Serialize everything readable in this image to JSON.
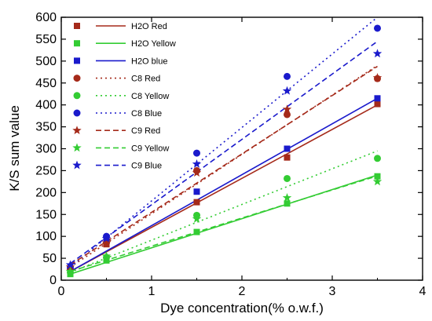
{
  "chart_data": {
    "type": "scatter",
    "xlabel": "Dye concentration(% o.w.f.)",
    "ylabel": "K/S sum value",
    "xlim": [
      0,
      4
    ],
    "ylim": [
      0,
      600
    ],
    "xticks": [
      "0",
      "1",
      "2",
      "3",
      "4"
    ],
    "yticks": [
      "0",
      "50",
      "100",
      "150",
      "200",
      "250",
      "300",
      "350",
      "400",
      "450",
      "500",
      "550",
      "600"
    ],
    "legend_position": "top-left",
    "grid": false,
    "x": [
      0.1,
      0.5,
      1.5,
      2.5,
      3.5
    ],
    "series": [
      {
        "name": "H2O Red",
        "color": "#a52a1a",
        "marker": "square",
        "line": "solid",
        "points": [
          22,
          82,
          178,
          280,
          402
        ],
        "fit": [
          [
            0.1,
            20
          ],
          [
            3.5,
            400
          ]
        ]
      },
      {
        "name": "H2O Yellow",
        "color": "#33cc33",
        "marker": "square",
        "line": "solid",
        "points": [
          14,
          45,
          110,
          175,
          237
        ],
        "fit": [
          [
            0.1,
            14
          ],
          [
            3.5,
            240
          ]
        ]
      },
      {
        "name": "H2O blue",
        "color": "#1a1acc",
        "marker": "square",
        "line": "solid",
        "points": [
          25,
          95,
          202,
          300,
          415
        ],
        "fit": [
          [
            0.1,
            20
          ],
          [
            3.5,
            415
          ]
        ]
      },
      {
        "name": "C8 Red",
        "color": "#a52a1a",
        "marker": "circle",
        "line": "dotted",
        "points": [
          25,
          85,
          250,
          378,
          460
        ],
        "fit": [
          [
            0.1,
            30
          ],
          [
            3.5,
            490
          ]
        ]
      },
      {
        "name": "C8 Yellow",
        "color": "#33cc33",
        "marker": "circle",
        "line": "dotted",
        "points": [
          18,
          52,
          148,
          232,
          278
        ],
        "fit": [
          [
            0.1,
            18
          ],
          [
            3.5,
            295
          ]
        ]
      },
      {
        "name": "C8 Blue",
        "color": "#1a1acc",
        "marker": "circle",
        "line": "dotted",
        "points": [
          30,
          100,
          290,
          465,
          575
        ],
        "fit": [
          [
            0.1,
            30
          ],
          [
            3.5,
            600
          ]
        ]
      },
      {
        "name": "C9 Red",
        "color": "#a52a1a",
        "marker": "star",
        "line": "dashed",
        "points": [
          30,
          85,
          245,
          390,
          462
        ],
        "fit": [
          [
            0.1,
            35
          ],
          [
            3.5,
            488
          ]
        ]
      },
      {
        "name": "C9 Yellow",
        "color": "#33cc33",
        "marker": "star",
        "line": "dashed",
        "points": [
          20,
          55,
          140,
          188,
          225
        ],
        "fit": [
          [
            0.1,
            20
          ],
          [
            3.5,
            238
          ]
        ]
      },
      {
        "name": "C9 Blue",
        "color": "#1a1acc",
        "marker": "star",
        "line": "dashed",
        "points": [
          35,
          95,
          265,
          432,
          517
        ],
        "fit": [
          [
            0.1,
            38
          ],
          [
            3.5,
            545
          ]
        ]
      }
    ]
  }
}
